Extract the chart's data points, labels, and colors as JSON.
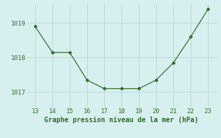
{
  "x": [
    13,
    14,
    15,
    16,
    17,
    18,
    19,
    20,
    21,
    22,
    23
  ],
  "y": [
    1018.9,
    1018.15,
    1018.15,
    1017.35,
    1017.1,
    1017.1,
    1017.1,
    1017.35,
    1017.85,
    1018.6,
    1019.4
  ],
  "xlabel": "Graphe pression niveau de la mer (hPa)",
  "line_color": "#2d6e2d",
  "marker": "D",
  "marker_size": 2.5,
  "bg_color": "#d8efef",
  "grid_color": "#b8d8d8",
  "xlim": [
    12.5,
    23.5
  ],
  "ylim": [
    1016.55,
    1019.55
  ],
  "yticks": [
    1017,
    1018,
    1019
  ],
  "xticks": [
    13,
    14,
    15,
    16,
    17,
    18,
    19,
    20,
    21,
    22,
    23
  ],
  "tick_color": "#2d6e2d",
  "label_color": "#2d6e2d",
  "tick_fontsize": 6.5,
  "label_fontsize": 7.0
}
